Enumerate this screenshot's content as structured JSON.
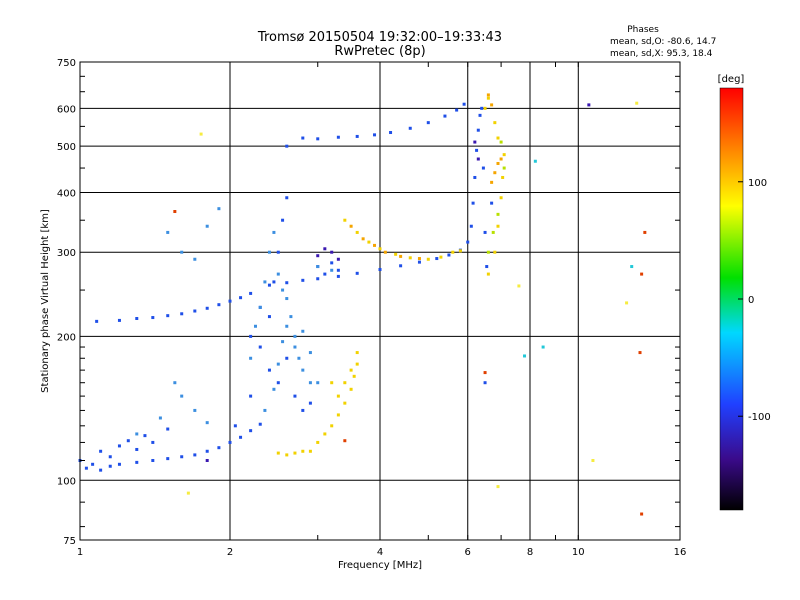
{
  "chart_data": {
    "type": "scatter",
    "title": "Tromsø 20150504 19:32:00–19:33:43",
    "subtitle": "RwPretec (8p)",
    "xlabel": "Frequency [MHz]",
    "ylabel": "Stationary phase Virtual Height [km]",
    "x_scale": "log",
    "y_scale": "log",
    "xlim": [
      1,
      16
    ],
    "ylim": [
      75,
      750
    ],
    "x_ticks": [
      1,
      2,
      4,
      6,
      8,
      10,
      16
    ],
    "x_tick_labels": [
      "1",
      "2",
      "4",
      "6",
      "8",
      "10",
      "16"
    ],
    "y_ticks": [
      75,
      100,
      200,
      300,
      400,
      500,
      600,
      750
    ],
    "y_tick_labels": [
      "75",
      "100",
      "200",
      "300",
      "400",
      "500",
      "600",
      "750"
    ],
    "grid": true,
    "phases_info": {
      "title": "Phases",
      "line_o": "mean, sd,O: -80.6, 14.7",
      "line_x": "mean, sd,X:  95.3, 18.4"
    },
    "colorbar": {
      "label": "[deg]",
      "range": [
        -180,
        180
      ],
      "ticks": [
        100,
        0,
        -100
      ],
      "tick_labels": [
        "100",
        "0",
        "-100"
      ]
    },
    "series": [
      {
        "phase_deg": -100,
        "color": "#1f4fe8",
        "points": [
          [
            1.0,
            110
          ],
          [
            1.03,
            106
          ],
          [
            1.06,
            108
          ],
          [
            1.1,
            105
          ],
          [
            1.15,
            107
          ],
          [
            1.2,
            108
          ],
          [
            1.3,
            109
          ],
          [
            1.4,
            110
          ],
          [
            1.5,
            111
          ],
          [
            1.6,
            112
          ],
          [
            1.7,
            113
          ],
          [
            1.8,
            115
          ],
          [
            1.9,
            117
          ],
          [
            2.0,
            120
          ],
          [
            2.1,
            123
          ],
          [
            2.2,
            127
          ],
          [
            2.3,
            131
          ],
          [
            1.1,
            115
          ],
          [
            1.15,
            112
          ],
          [
            1.2,
            118
          ],
          [
            1.25,
            121
          ],
          [
            1.3,
            116
          ],
          [
            1.35,
            124
          ],
          [
            1.4,
            120
          ],
          [
            1.5,
            128
          ],
          [
            1.08,
            215
          ],
          [
            1.2,
            216
          ],
          [
            1.3,
            218
          ],
          [
            1.4,
            219
          ],
          [
            1.5,
            221
          ],
          [
            1.6,
            223
          ],
          [
            1.7,
            226
          ],
          [
            1.8,
            229
          ],
          [
            1.9,
            233
          ],
          [
            2.0,
            237
          ],
          [
            2.1,
            241
          ],
          [
            2.2,
            246
          ],
          [
            2.4,
            256
          ],
          [
            2.6,
            259
          ],
          [
            2.8,
            262
          ],
          [
            3.0,
            264
          ],
          [
            3.3,
            267
          ],
          [
            3.6,
            271
          ],
          [
            4.0,
            276
          ],
          [
            4.4,
            281
          ],
          [
            4.8,
            286
          ],
          [
            5.2,
            291
          ],
          [
            5.5,
            296
          ],
          [
            5.8,
            303
          ],
          [
            6.0,
            315
          ],
          [
            6.1,
            340
          ],
          [
            6.15,
            380
          ],
          [
            6.2,
            430
          ],
          [
            6.25,
            490
          ],
          [
            6.3,
            540
          ],
          [
            6.35,
            580
          ],
          [
            2.6,
            500
          ],
          [
            2.8,
            520
          ],
          [
            3.0,
            518
          ],
          [
            3.3,
            522
          ],
          [
            3.6,
            524
          ],
          [
            3.9,
            528
          ],
          [
            4.2,
            534
          ],
          [
            4.6,
            545
          ],
          [
            5.0,
            560
          ],
          [
            5.4,
            578
          ],
          [
            5.7,
            595
          ],
          [
            5.9,
            612
          ],
          [
            2.05,
            130
          ],
          [
            2.2,
            150
          ],
          [
            2.3,
            190
          ],
          [
            2.4,
            220
          ],
          [
            2.45,
            260
          ],
          [
            2.5,
            300
          ],
          [
            2.55,
            350
          ],
          [
            2.6,
            390
          ],
          [
            2.2,
            200
          ],
          [
            2.3,
            230
          ],
          [
            2.4,
            170
          ],
          [
            2.5,
            160
          ],
          [
            2.6,
            180
          ],
          [
            2.7,
            150
          ],
          [
            2.8,
            140
          ],
          [
            2.9,
            145
          ],
          [
            3.0,
            280
          ],
          [
            3.1,
            270
          ],
          [
            3.2,
            285
          ],
          [
            3.3,
            275
          ],
          [
            6.4,
            600
          ],
          [
            6.45,
            450
          ],
          [
            6.5,
            330
          ],
          [
            6.55,
            280
          ],
          [
            6.5,
            160
          ],
          [
            6.7,
            380
          ]
        ]
      },
      {
        "phase_deg": -70,
        "color": "#3c8fe0",
        "points": [
          [
            1.3,
            125
          ],
          [
            1.45,
            135
          ],
          [
            1.55,
            160
          ],
          [
            1.6,
            150
          ],
          [
            1.7,
            140
          ],
          [
            1.8,
            132
          ],
          [
            1.5,
            330
          ],
          [
            1.6,
            300
          ],
          [
            1.7,
            290
          ],
          [
            1.8,
            340
          ],
          [
            1.9,
            370
          ],
          [
            2.3,
            230
          ],
          [
            2.35,
            260
          ],
          [
            2.4,
            300
          ],
          [
            2.45,
            330
          ],
          [
            2.5,
            270
          ],
          [
            2.55,
            250
          ],
          [
            2.6,
            240
          ],
          [
            2.65,
            220
          ],
          [
            2.7,
            200
          ],
          [
            2.75,
            180
          ],
          [
            2.8,
            170
          ],
          [
            2.9,
            160
          ],
          [
            2.35,
            140
          ],
          [
            2.45,
            155
          ],
          [
            2.5,
            175
          ],
          [
            2.55,
            195
          ],
          [
            2.6,
            210
          ],
          [
            2.7,
            190
          ],
          [
            2.8,
            205
          ],
          [
            2.9,
            185
          ],
          [
            3.0,
            160
          ],
          [
            3.0,
            280
          ],
          [
            3.2,
            275
          ],
          [
            2.2,
            180
          ],
          [
            2.25,
            210
          ]
        ]
      },
      {
        "phase_deg": 100,
        "color": "#f2d200",
        "points": [
          [
            2.5,
            114
          ],
          [
            2.6,
            113
          ],
          [
            2.7,
            114
          ],
          [
            2.8,
            115
          ],
          [
            2.9,
            115
          ],
          [
            3.0,
            120
          ],
          [
            3.1,
            125
          ],
          [
            3.2,
            130
          ],
          [
            3.3,
            137
          ],
          [
            3.4,
            145
          ],
          [
            3.5,
            155
          ],
          [
            3.55,
            165
          ],
          [
            3.6,
            175
          ],
          [
            3.6,
            185
          ],
          [
            3.3,
            150
          ],
          [
            3.4,
            160
          ],
          [
            3.5,
            170
          ],
          [
            3.2,
            160
          ],
          [
            3.4,
            350
          ],
          [
            3.6,
            330
          ],
          [
            3.8,
            315
          ],
          [
            4.0,
            305
          ],
          [
            4.3,
            297
          ],
          [
            4.6,
            292
          ],
          [
            5.0,
            290
          ],
          [
            5.3,
            293
          ],
          [
            5.6,
            300
          ],
          [
            5.8,
            302
          ],
          [
            6.6,
            270
          ],
          [
            6.8,
            300
          ],
          [
            6.9,
            340
          ],
          [
            7.0,
            390
          ],
          [
            7.05,
            430
          ],
          [
            7.1,
            480
          ],
          [
            6.9,
            520
          ],
          [
            6.8,
            560
          ],
          [
            6.5,
            600
          ],
          [
            6.6,
            630
          ]
        ]
      },
      {
        "phase_deg": 120,
        "color": "#f5a500",
        "points": [
          [
            3.5,
            340
          ],
          [
            3.7,
            320
          ],
          [
            3.9,
            310
          ],
          [
            4.1,
            300
          ],
          [
            4.4,
            294
          ],
          [
            4.8,
            291
          ],
          [
            6.7,
            420
          ],
          [
            6.8,
            440
          ],
          [
            6.9,
            460
          ],
          [
            7.0,
            470
          ],
          [
            6.6,
            640
          ],
          [
            6.7,
            610
          ]
        ]
      },
      {
        "phase_deg": 60,
        "color": "#b8e000",
        "points": [
          [
            6.6,
            300
          ],
          [
            6.75,
            330
          ],
          [
            6.9,
            360
          ],
          [
            7.0,
            510
          ],
          [
            7.1,
            450
          ]
        ]
      },
      {
        "phase_deg": -140,
        "color": "#3a18b0",
        "points": [
          [
            3.0,
            295
          ],
          [
            3.1,
            305
          ],
          [
            3.2,
            300
          ],
          [
            3.3,
            290
          ],
          [
            6.2,
            510
          ],
          [
            6.3,
            470
          ],
          [
            1.8,
            110
          ],
          [
            10.5,
            610
          ]
        ]
      },
      {
        "phase_deg": 150,
        "color": "#e04000",
        "points": [
          [
            1.55,
            365
          ],
          [
            3.4,
            121
          ],
          [
            6.5,
            168
          ],
          [
            13.4,
            270
          ],
          [
            13.3,
            185
          ],
          [
            13.6,
            330
          ],
          [
            13.4,
            85
          ]
        ]
      },
      {
        "phase_deg": 90,
        "color": "#f6ec40",
        "points": [
          [
            1.65,
            94
          ],
          [
            1.75,
            530
          ],
          [
            6.9,
            97
          ],
          [
            7.6,
            255
          ],
          [
            13.1,
            615
          ],
          [
            10.7,
            110
          ],
          [
            12.5,
            235
          ]
        ]
      },
      {
        "phase_deg": -20,
        "color": "#22c8d8",
        "points": [
          [
            7.8,
            182
          ],
          [
            8.2,
            465
          ],
          [
            8.5,
            190
          ],
          [
            12.8,
            280
          ]
        ]
      }
    ]
  }
}
